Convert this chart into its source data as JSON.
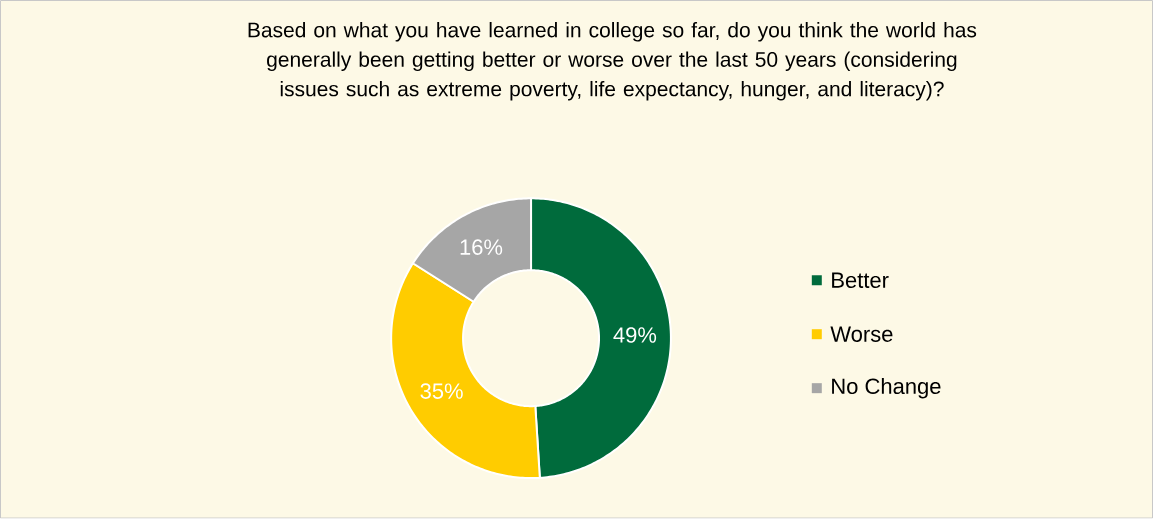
{
  "chart_data": {
    "type": "donut",
    "title": "Based on what you have learned in college so far, do you think the world has generally been getting better or worse over the last 50 years (considering issues such as extreme poverty, life expectancy, hunger, and literacy)?",
    "categories": [
      "Better",
      "Worse",
      "No Change"
    ],
    "values": [
      49,
      35,
      16
    ],
    "value_labels": [
      "49%",
      "35%",
      "16%"
    ],
    "colors": [
      "#006b3c",
      "#ffcc00",
      "#a6a6a6"
    ],
    "legend": "right"
  }
}
